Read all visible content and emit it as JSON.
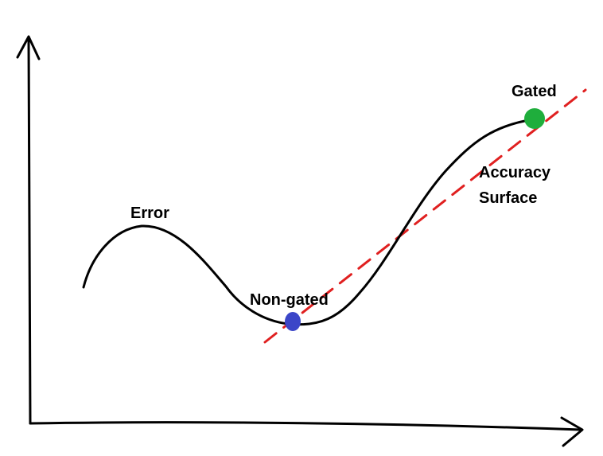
{
  "labels": {
    "error": "Error",
    "non_gated": "Non-gated",
    "gated": "Gated",
    "accuracy_line1": "Accuracy",
    "accuracy_line2": "Surface"
  },
  "points": {
    "non_gated": {
      "color": "#3b46c8"
    },
    "gated": {
      "color": "#1fae3c"
    }
  },
  "colors": {
    "curve": "#000000",
    "axes": "#000000",
    "dashed_line": "#e02020"
  }
}
